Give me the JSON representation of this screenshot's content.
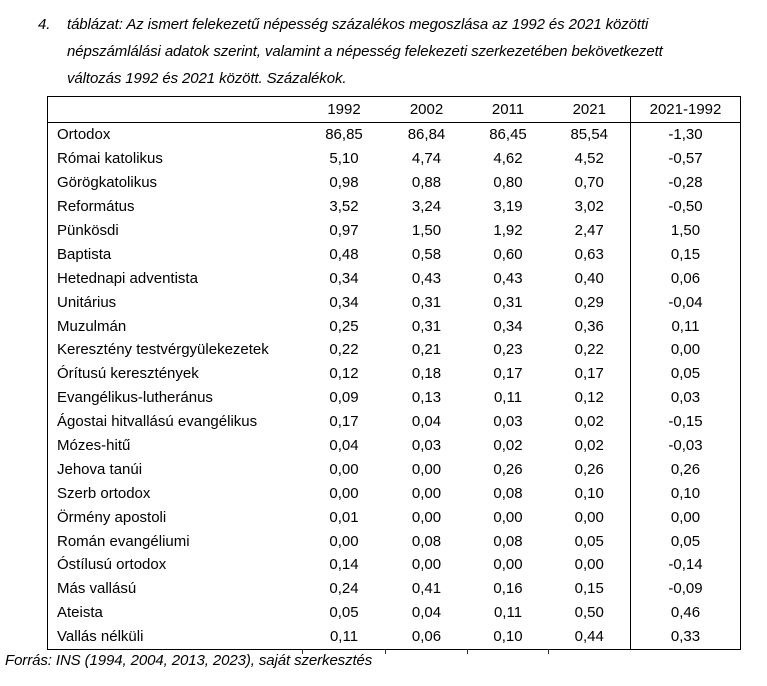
{
  "title": {
    "number": "4.",
    "lines": [
      "táblázat: Az ismert felekezetű népesség százalékos megoszlása az 1992 és 2021 közötti",
      "népszámlálási adatok szerint, valamint a népesség felekezeti szerkezetében bekövetkezett",
      "változás 1992 és 2021 között. Százalékok."
    ]
  },
  "table": {
    "columns": [
      "",
      "1992",
      "2002",
      "2011",
      "2021",
      "2021-1992"
    ],
    "rows": [
      {
        "label": "Ortodox",
        "values": [
          "86,85",
          "86,84",
          "86,45",
          "85,54",
          "-1,30"
        ]
      },
      {
        "label": "Római katolikus",
        "values": [
          "5,10",
          "4,74",
          "4,62",
          "4,52",
          "-0,57"
        ]
      },
      {
        "label": "Görögkatolikus",
        "values": [
          "0,98",
          "0,88",
          "0,80",
          "0,70",
          "-0,28"
        ]
      },
      {
        "label": "Református",
        "values": [
          "3,52",
          "3,24",
          "3,19",
          "3,02",
          "-0,50"
        ]
      },
      {
        "label": "Pünkösdi",
        "values": [
          "0,97",
          "1,50",
          "1,92",
          "2,47",
          "1,50"
        ]
      },
      {
        "label": "Baptista",
        "values": [
          "0,48",
          "0,58",
          "0,60",
          "0,63",
          "0,15"
        ]
      },
      {
        "label": "Hetednapi adventista",
        "values": [
          "0,34",
          "0,43",
          "0,43",
          "0,40",
          "0,06"
        ]
      },
      {
        "label": "Unitárius",
        "values": [
          "0,34",
          "0,31",
          "0,31",
          "0,29",
          "-0,04"
        ]
      },
      {
        "label": "Muzulmán",
        "values": [
          "0,25",
          "0,31",
          "0,34",
          "0,36",
          "0,11"
        ]
      },
      {
        "label": "Keresztény testvérgyülekezetek",
        "values": [
          "0,22",
          "0,21",
          "0,23",
          "0,22",
          "0,00"
        ]
      },
      {
        "label": "Órítusú keresztények",
        "values": [
          "0,12",
          "0,18",
          "0,17",
          "0,17",
          "0,05"
        ]
      },
      {
        "label": "Evangélikus-lutheránus",
        "values": [
          "0,09",
          "0,13",
          "0,11",
          "0,12",
          "0,03"
        ]
      },
      {
        "label": "Ágostai hitvallású evangélikus",
        "values": [
          "0,17",
          "0,04",
          "0,03",
          "0,02",
          "-0,15"
        ]
      },
      {
        "label": "Mózes-hitű",
        "values": [
          "0,04",
          "0,03",
          "0,02",
          "0,02",
          "-0,03"
        ]
      },
      {
        "label": "Jehova tanúi",
        "values": [
          "0,00",
          "0,00",
          "0,26",
          "0,26",
          "0,26"
        ]
      },
      {
        "label": "Szerb ortodox",
        "values": [
          "0,00",
          "0,00",
          "0,08",
          "0,10",
          "0,10"
        ]
      },
      {
        "label": "Örmény apostoli",
        "values": [
          "0,01",
          "0,00",
          "0,00",
          "0,00",
          "0,00"
        ]
      },
      {
        "label": "Román evangéliumi",
        "values": [
          "0,00",
          "0,08",
          "0,08",
          "0,05",
          "0,05"
        ]
      },
      {
        "label": "Óstílusú ortodox",
        "values": [
          "0,14",
          "0,00",
          "0,00",
          "0,00",
          "-0,14"
        ]
      },
      {
        "label": "Más vallású",
        "values": [
          "0,24",
          "0,41",
          "0,16",
          "0,15",
          "-0,09"
        ]
      },
      {
        "label": "Ateista",
        "values": [
          "0,05",
          "0,04",
          "0,11",
          "0,50",
          "0,46"
        ]
      },
      {
        "label": "Vallás nélküli",
        "values": [
          "0,11",
          "0,06",
          "0,10",
          "0,44",
          "0,33"
        ]
      }
    ]
  },
  "footer": {
    "source": "Forrás: INS (1994, 2004, 2013, 2023), saját szerkesztés"
  },
  "colors": {
    "text": "#000000",
    "border": "#000000",
    "background": "#ffffff"
  }
}
